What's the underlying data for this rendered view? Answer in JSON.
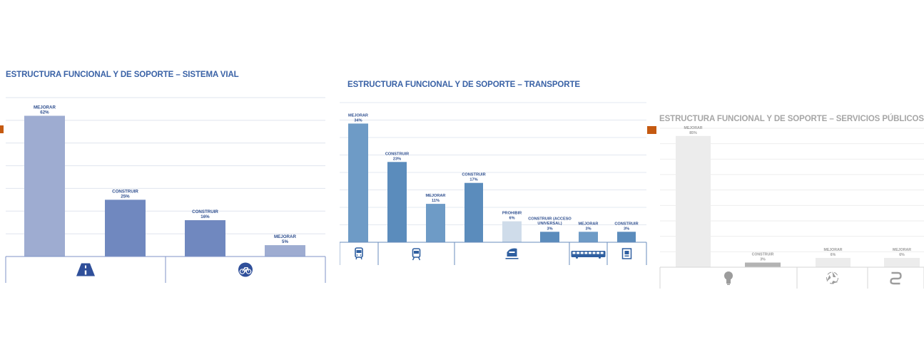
{
  "chart_data": [
    {
      "type": "bar",
      "title": "ESTRUCTURA FUNCIONAL Y DE SOPORTE – SISTEMA VIAL",
      "categories": [
        "MEJORAR",
        "CONSTRUIR",
        "CONSTRUIR",
        "MEJORAR"
      ],
      "values": [
        62,
        25,
        16,
        5
      ],
      "value_labels": [
        "62%",
        "25%",
        "16%",
        "5%"
      ],
      "ylim": [
        0,
        70
      ],
      "grid": true,
      "groups": [
        {
          "icon": "road-icon",
          "bars": [
            0,
            1
          ]
        },
        {
          "icon": "bicycle-icon",
          "bars": [
            2,
            3
          ]
        }
      ],
      "colors": [
        "#9eacd1",
        "#7088bf",
        "#7088bf",
        "#9eacd1"
      ],
      "title_color": "#3a62a6"
    },
    {
      "type": "bar",
      "title": "ESTRUCTURA FUNCIONAL Y DE SOPORTE – TRANSPORTE",
      "categories": [
        "MEJORAR",
        "CONSTRUIR",
        "MEJORAR",
        "CONSTRUIR",
        "PROHIBIR",
        "CONSTRUIR (ACCESO UNIVERSAL)",
        "MEJORAR",
        "CONSTRUIR"
      ],
      "values": [
        34,
        23,
        11,
        17,
        6,
        3,
        3,
        3
      ],
      "value_labels": [
        "34%",
        "23%",
        "11%",
        "17%",
        "6%",
        "3%",
        "3%",
        "3%"
      ],
      "ylim": [
        0,
        40
      ],
      "grid": true,
      "groups": [
        {
          "icon": "bus-icon",
          "bars": [
            0
          ]
        },
        {
          "icon": "tram-icon",
          "bars": [
            1,
            2
          ]
        },
        {
          "icon": "train-icon",
          "bars": [
            3,
            4
          ]
        },
        {
          "icon": "brt-bus-icon",
          "bars": [
            5,
            6
          ]
        },
        {
          "icon": "ticket-card-icon",
          "bars": [
            7
          ]
        }
      ],
      "colors": [
        "#6e9bc6",
        "#5b8cbc",
        "#6e9bc6",
        "#5b8cbc",
        "#cfdcea",
        "#5b8cbc",
        "#6e9bc6",
        "#5b8cbc"
      ],
      "title_color": "#3a62a6"
    },
    {
      "type": "bar",
      "title": "ESTRUCTURA FUNCIONAL Y DE SOPORTE – SERVICIOS PÚBLICOS",
      "categories": [
        "MEJORAR",
        "CONSTRUIR",
        "MEJORAR",
        "MEJORAR"
      ],
      "values": [
        85,
        3,
        6,
        6
      ],
      "value_labels": [
        "85%",
        "3%",
        "6%",
        "6%"
      ],
      "ylim": [
        0,
        90
      ],
      "grid": true,
      "groups": [
        {
          "icon": "lightbulb-icon",
          "bars": [
            0,
            1
          ]
        },
        {
          "icon": "recycle-icon",
          "bars": [
            2
          ]
        },
        {
          "icon": "pipe-icon",
          "bars": [
            3
          ]
        }
      ],
      "colors": [
        "#ececec",
        "#b3b3b3",
        "#ececec",
        "#ececec"
      ],
      "title_color": "#a6a6a6"
    }
  ]
}
